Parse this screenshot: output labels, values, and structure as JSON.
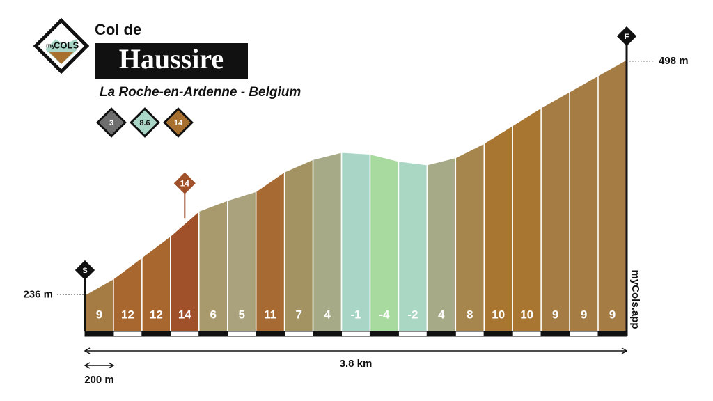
{
  "chart_data": {
    "type": "profile",
    "title": "Col de",
    "name": "Haussire",
    "subtitle": "La Roche-en-Ardenne - Belgium",
    "logo": {
      "small": "my",
      "big": "COLS"
    },
    "watermark": "myCols.app",
    "start_label": "S",
    "finish_label": "F",
    "badges": [
      {
        "value": 3,
        "color": "#6e6e6e"
      },
      {
        "value": 8.6,
        "color": "#a9d6c6"
      },
      {
        "value": 14,
        "color": "#a8702e"
      }
    ],
    "values": [
      9,
      12,
      12,
      14,
      6,
      5,
      11,
      7,
      4,
      -1,
      -4,
      -2,
      4,
      8,
      10,
      10,
      9,
      9,
      9
    ],
    "colors": [
      "#a47c44",
      "#a8672f",
      "#a8672f",
      "#a0512a",
      "#a89a6c",
      "#a9a27c",
      "#a66a32",
      "#a39262",
      "#a6aa86",
      "#a9d5c6",
      "#a8d99e",
      "#a9d7c4",
      "#a6aa86",
      "#a6864c",
      "#a87630",
      "#a87630",
      "#a47c44",
      "#a47c44",
      "#a47c44"
    ],
    "xlim": [
      0,
      3800
    ],
    "ylim": [
      195,
      520
    ],
    "yticks": [
      {
        "value": 236,
        "label": "236 m"
      },
      {
        "value": 498,
        "label": "498 m"
      }
    ],
    "scale_bars": [
      {
        "value": 3800,
        "label": "3.8 km"
      },
      {
        "value": 200,
        "label": "200 m"
      }
    ]
  }
}
